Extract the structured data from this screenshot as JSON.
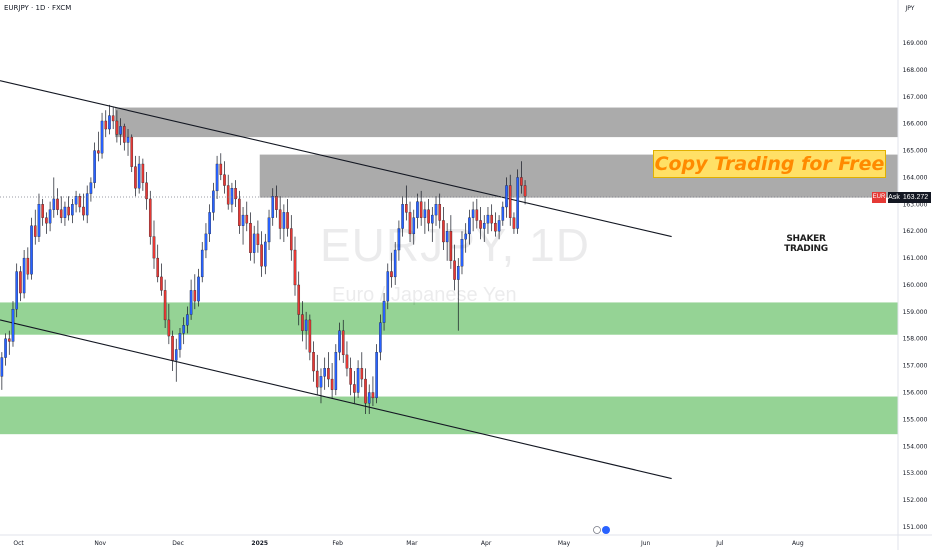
{
  "header": {
    "title": "EURJPY · 1D · FXCM"
  },
  "watermark": {
    "symbol": "EURJPY, 1D",
    "name": "Euro / Japanese Yen"
  },
  "banner": {
    "text": "Copy Trading for Free"
  },
  "logo": {
    "line1": "SHAKER",
    "line2": "TRADING",
    "line3": ""
  },
  "price_tag": {
    "flag": "EUR",
    "ask": "Ask",
    "value": "163.272"
  },
  "colors": {
    "up": "#2962ff",
    "down": "#e53935",
    "wick": "#131722",
    "resistance_zone": "#a6a6a6",
    "support_zone": "#8fd18f",
    "trendline": "#131722",
    "price_line": "#787b86"
  },
  "chart_data": {
    "type": "candlestick",
    "currency_label": "JPY",
    "y_ticks": [
      151,
      152,
      153,
      154,
      155,
      156,
      157,
      158,
      159,
      160,
      161,
      162,
      163,
      164,
      165,
      166,
      167,
      168,
      169
    ],
    "ylim": [
      150.7,
      170.6
    ],
    "x_months": [
      {
        "label": "Oct",
        "index": 5
      },
      {
        "label": "Nov",
        "index": 27
      },
      {
        "label": "Dec",
        "index": 48
      },
      {
        "label": "2025",
        "index": 70
      },
      {
        "label": "Feb",
        "index": 91
      },
      {
        "label": "Mar",
        "index": 111
      },
      {
        "label": "Apr",
        "index": 131
      },
      {
        "label": "May",
        "index": 152
      },
      {
        "label": "Jun",
        "index": 174
      },
      {
        "label": "Jul",
        "index": 194
      },
      {
        "label": "Aug",
        "index": 215
      }
    ],
    "xlim": [
      0,
      242
    ],
    "current_price": 163.272,
    "zones": [
      {
        "kind": "resistance",
        "start_index": 31,
        "y_low": 165.5,
        "y_high": 166.6
      },
      {
        "kind": "resistance",
        "start_index": 70,
        "y_low": 163.25,
        "y_high": 164.85
      },
      {
        "kind": "support",
        "start_index": 0,
        "y_low": 158.15,
        "y_high": 159.35
      },
      {
        "kind": "support",
        "start_index": 0,
        "y_low": 154.45,
        "y_high": 155.85
      }
    ],
    "trendlines": [
      {
        "x1": 0,
        "y1": 167.6,
        "x2": 181,
        "y2": 161.8
      },
      {
        "x1": 0,
        "y1": 158.7,
        "x2": 181,
        "y2": 152.8
      }
    ],
    "candles": [
      [
        156.6,
        157.5,
        156.1,
        157.3
      ],
      [
        157.3,
        158.2,
        157.0,
        158.0
      ],
      [
        158.0,
        158.3,
        157.4,
        157.9
      ],
      [
        157.9,
        159.4,
        157.7,
        159.1
      ],
      [
        159.1,
        160.8,
        158.8,
        160.5
      ],
      [
        160.5,
        160.7,
        159.4,
        159.7
      ],
      [
        159.7,
        161.3,
        159.5,
        161.0
      ],
      [
        161.0,
        161.4,
        160.2,
        160.4
      ],
      [
        160.4,
        162.5,
        160.2,
        162.2
      ],
      [
        162.2,
        162.8,
        161.5,
        161.8
      ],
      [
        161.8,
        163.4,
        161.6,
        163.0
      ],
      [
        163.0,
        163.2,
        162.2,
        162.5
      ],
      [
        162.5,
        162.7,
        161.9,
        162.3
      ],
      [
        162.3,
        163.1,
        162.0,
        162.8
      ],
      [
        162.8,
        164.0,
        162.5,
        163.2
      ],
      [
        163.2,
        163.6,
        162.6,
        162.8
      ],
      [
        162.8,
        163.3,
        162.3,
        162.5
      ],
      [
        162.5,
        163.1,
        162.2,
        162.9
      ],
      [
        162.9,
        163.3,
        162.4,
        162.6
      ],
      [
        162.6,
        163.2,
        162.3,
        163.0
      ],
      [
        163.0,
        163.5,
        162.7,
        163.3
      ],
      [
        163.3,
        163.4,
        162.7,
        162.9
      ],
      [
        162.9,
        163.4,
        162.4,
        162.6
      ],
      [
        162.6,
        163.7,
        162.3,
        163.4
      ],
      [
        163.4,
        164.0,
        163.1,
        163.8
      ],
      [
        163.8,
        165.3,
        163.6,
        165.0
      ],
      [
        165.0,
        165.7,
        164.6,
        164.9
      ],
      [
        164.9,
        166.4,
        164.7,
        166.1
      ],
      [
        166.1,
        166.5,
        165.5,
        165.8
      ],
      [
        165.8,
        166.7,
        165.6,
        166.3
      ],
      [
        166.3,
        166.6,
        165.8,
        166.1
      ],
      [
        166.1,
        166.5,
        165.3,
        165.6
      ],
      [
        165.6,
        166.2,
        165.2,
        165.9
      ],
      [
        165.9,
        166.0,
        165.0,
        165.3
      ],
      [
        165.3,
        165.8,
        164.8,
        165.5
      ],
      [
        165.5,
        165.6,
        164.2,
        164.4
      ],
      [
        164.4,
        164.8,
        163.3,
        163.6
      ],
      [
        163.6,
        164.8,
        163.4,
        164.5
      ],
      [
        164.5,
        164.7,
        163.5,
        163.8
      ],
      [
        163.8,
        164.2,
        162.8,
        163.2
      ],
      [
        163.2,
        163.5,
        161.5,
        161.8
      ],
      [
        161.8,
        162.4,
        160.6,
        161.0
      ],
      [
        161.0,
        161.5,
        160.1,
        160.3
      ],
      [
        160.3,
        160.8,
        159.6,
        159.8
      ],
      [
        159.8,
        160.2,
        158.4,
        158.7
      ],
      [
        158.7,
        159.3,
        157.8,
        158.1
      ],
      [
        158.1,
        158.3,
        156.8,
        157.2
      ],
      [
        157.2,
        158.0,
        156.4,
        157.6
      ],
      [
        157.6,
        158.4,
        157.3,
        158.2
      ],
      [
        158.2,
        158.8,
        157.8,
        158.5
      ],
      [
        158.5,
        159.2,
        158.2,
        158.9
      ],
      [
        158.9,
        160.2,
        158.7,
        159.8
      ],
      [
        159.8,
        160.4,
        159.1,
        159.4
      ],
      [
        159.4,
        160.6,
        159.2,
        160.3
      ],
      [
        160.3,
        161.6,
        160.1,
        161.3
      ],
      [
        161.3,
        162.3,
        161.0,
        161.9
      ],
      [
        161.9,
        163.0,
        161.6,
        162.7
      ],
      [
        162.7,
        163.8,
        162.4,
        163.5
      ],
      [
        163.5,
        164.8,
        163.2,
        164.5
      ],
      [
        164.5,
        164.9,
        163.9,
        164.1
      ],
      [
        164.1,
        164.6,
        163.4,
        163.7
      ],
      [
        163.7,
        164.1,
        162.8,
        163.0
      ],
      [
        163.0,
        163.8,
        162.7,
        163.6
      ],
      [
        163.6,
        163.9,
        162.9,
        163.2
      ],
      [
        163.2,
        163.5,
        161.9,
        162.2
      ],
      [
        162.2,
        162.9,
        161.5,
        162.6
      ],
      [
        162.6,
        163.1,
        162.0,
        162.3
      ],
      [
        162.3,
        162.7,
        160.9,
        161.2
      ],
      [
        161.2,
        162.2,
        160.8,
        161.9
      ],
      [
        161.9,
        162.4,
        161.2,
        161.5
      ],
      [
        161.5,
        162.0,
        160.3,
        160.7
      ],
      [
        160.7,
        161.9,
        160.4,
        161.6
      ],
      [
        161.6,
        162.8,
        161.3,
        162.5
      ],
      [
        162.5,
        163.6,
        162.2,
        163.3
      ],
      [
        163.3,
        163.7,
        162.5,
        162.8
      ],
      [
        162.8,
        163.3,
        161.7,
        162.1
      ],
      [
        162.1,
        163.0,
        161.6,
        162.7
      ],
      [
        162.7,
        163.2,
        161.8,
        162.1
      ],
      [
        162.1,
        162.6,
        160.9,
        161.3
      ],
      [
        161.3,
        161.8,
        159.6,
        160.0
      ],
      [
        160.0,
        160.5,
        158.5,
        158.9
      ],
      [
        158.9,
        159.4,
        157.9,
        158.3
      ],
      [
        158.3,
        159.0,
        157.6,
        158.7
      ],
      [
        158.7,
        158.9,
        157.2,
        157.5
      ],
      [
        157.5,
        157.9,
        156.4,
        156.8
      ],
      [
        156.8,
        157.4,
        155.9,
        156.2
      ],
      [
        156.2,
        156.9,
        155.6,
        156.6
      ],
      [
        156.6,
        157.3,
        156.1,
        156.9
      ],
      [
        156.9,
        157.5,
        156.2,
        156.5
      ],
      [
        156.5,
        157.1,
        155.8,
        156.1
      ],
      [
        156.1,
        157.8,
        155.9,
        157.5
      ],
      [
        157.5,
        158.6,
        157.2,
        158.3
      ],
      [
        158.3,
        158.7,
        157.1,
        157.4
      ],
      [
        157.4,
        157.9,
        156.6,
        156.9
      ],
      [
        156.9,
        157.3,
        155.9,
        156.3
      ],
      [
        156.3,
        156.8,
        155.6,
        156.0
      ],
      [
        156.0,
        157.2,
        155.8,
        156.9
      ],
      [
        156.9,
        157.5,
        156.2,
        156.5
      ],
      [
        156.5,
        156.9,
        155.2,
        155.6
      ],
      [
        155.6,
        156.3,
        155.2,
        156.0
      ],
      [
        156.0,
        156.6,
        155.5,
        155.8
      ],
      [
        155.8,
        157.8,
        155.6,
        157.5
      ],
      [
        157.5,
        158.9,
        157.2,
        158.6
      ],
      [
        158.6,
        159.7,
        158.3,
        159.4
      ],
      [
        159.4,
        160.8,
        159.1,
        160.5
      ],
      [
        160.5,
        161.2,
        159.9,
        160.3
      ],
      [
        160.3,
        161.6,
        160.0,
        161.3
      ],
      [
        161.3,
        162.4,
        160.9,
        162.1
      ],
      [
        162.1,
        163.3,
        161.8,
        163.0
      ],
      [
        163.0,
        163.7,
        162.4,
        162.7
      ],
      [
        162.7,
        163.1,
        161.6,
        161.9
      ],
      [
        161.9,
        162.8,
        161.5,
        162.5
      ],
      [
        162.5,
        163.4,
        162.1,
        163.1
      ],
      [
        163.1,
        163.5,
        162.2,
        162.5
      ],
      [
        162.5,
        163.1,
        161.9,
        162.8
      ],
      [
        162.8,
        163.2,
        162.0,
        162.3
      ],
      [
        162.3,
        162.9,
        161.6,
        162.6
      ],
      [
        162.6,
        163.3,
        162.2,
        163.0
      ],
      [
        163.0,
        163.4,
        162.1,
        162.4
      ],
      [
        162.4,
        162.9,
        161.3,
        161.6
      ],
      [
        161.6,
        162.3,
        160.9,
        162.0
      ],
      [
        162.0,
        162.6,
        160.6,
        160.9
      ],
      [
        160.9,
        161.5,
        159.8,
        160.2
      ],
      [
        160.2,
        161.0,
        158.3,
        160.7
      ],
      [
        160.7,
        162.0,
        160.4,
        161.7
      ],
      [
        161.7,
        162.3,
        161.2,
        161.9
      ],
      [
        161.9,
        162.8,
        161.5,
        162.5
      ],
      [
        162.5,
        163.1,
        162.0,
        162.8
      ],
      [
        162.8,
        163.2,
        162.1,
        162.4
      ],
      [
        162.4,
        162.9,
        161.7,
        162.1
      ],
      [
        162.1,
        162.6,
        161.6,
        162.3
      ],
      [
        162.3,
        162.9,
        161.9,
        162.6
      ],
      [
        162.6,
        163.0,
        162.0,
        162.3
      ],
      [
        162.3,
        162.7,
        161.8,
        162.0
      ],
      [
        162.0,
        162.6,
        161.7,
        162.4
      ],
      [
        162.4,
        163.1,
        162.2,
        162.9
      ],
      [
        162.9,
        164.0,
        162.5,
        163.7
      ],
      [
        163.7,
        164.1,
        162.2,
        162.5
      ],
      [
        162.5,
        162.7,
        161.9,
        162.1
      ],
      [
        162.1,
        164.3,
        161.9,
        164.0
      ],
      [
        164.0,
        164.6,
        163.4,
        163.7
      ],
      [
        163.7,
        163.9,
        163.0,
        163.3
      ]
    ]
  }
}
